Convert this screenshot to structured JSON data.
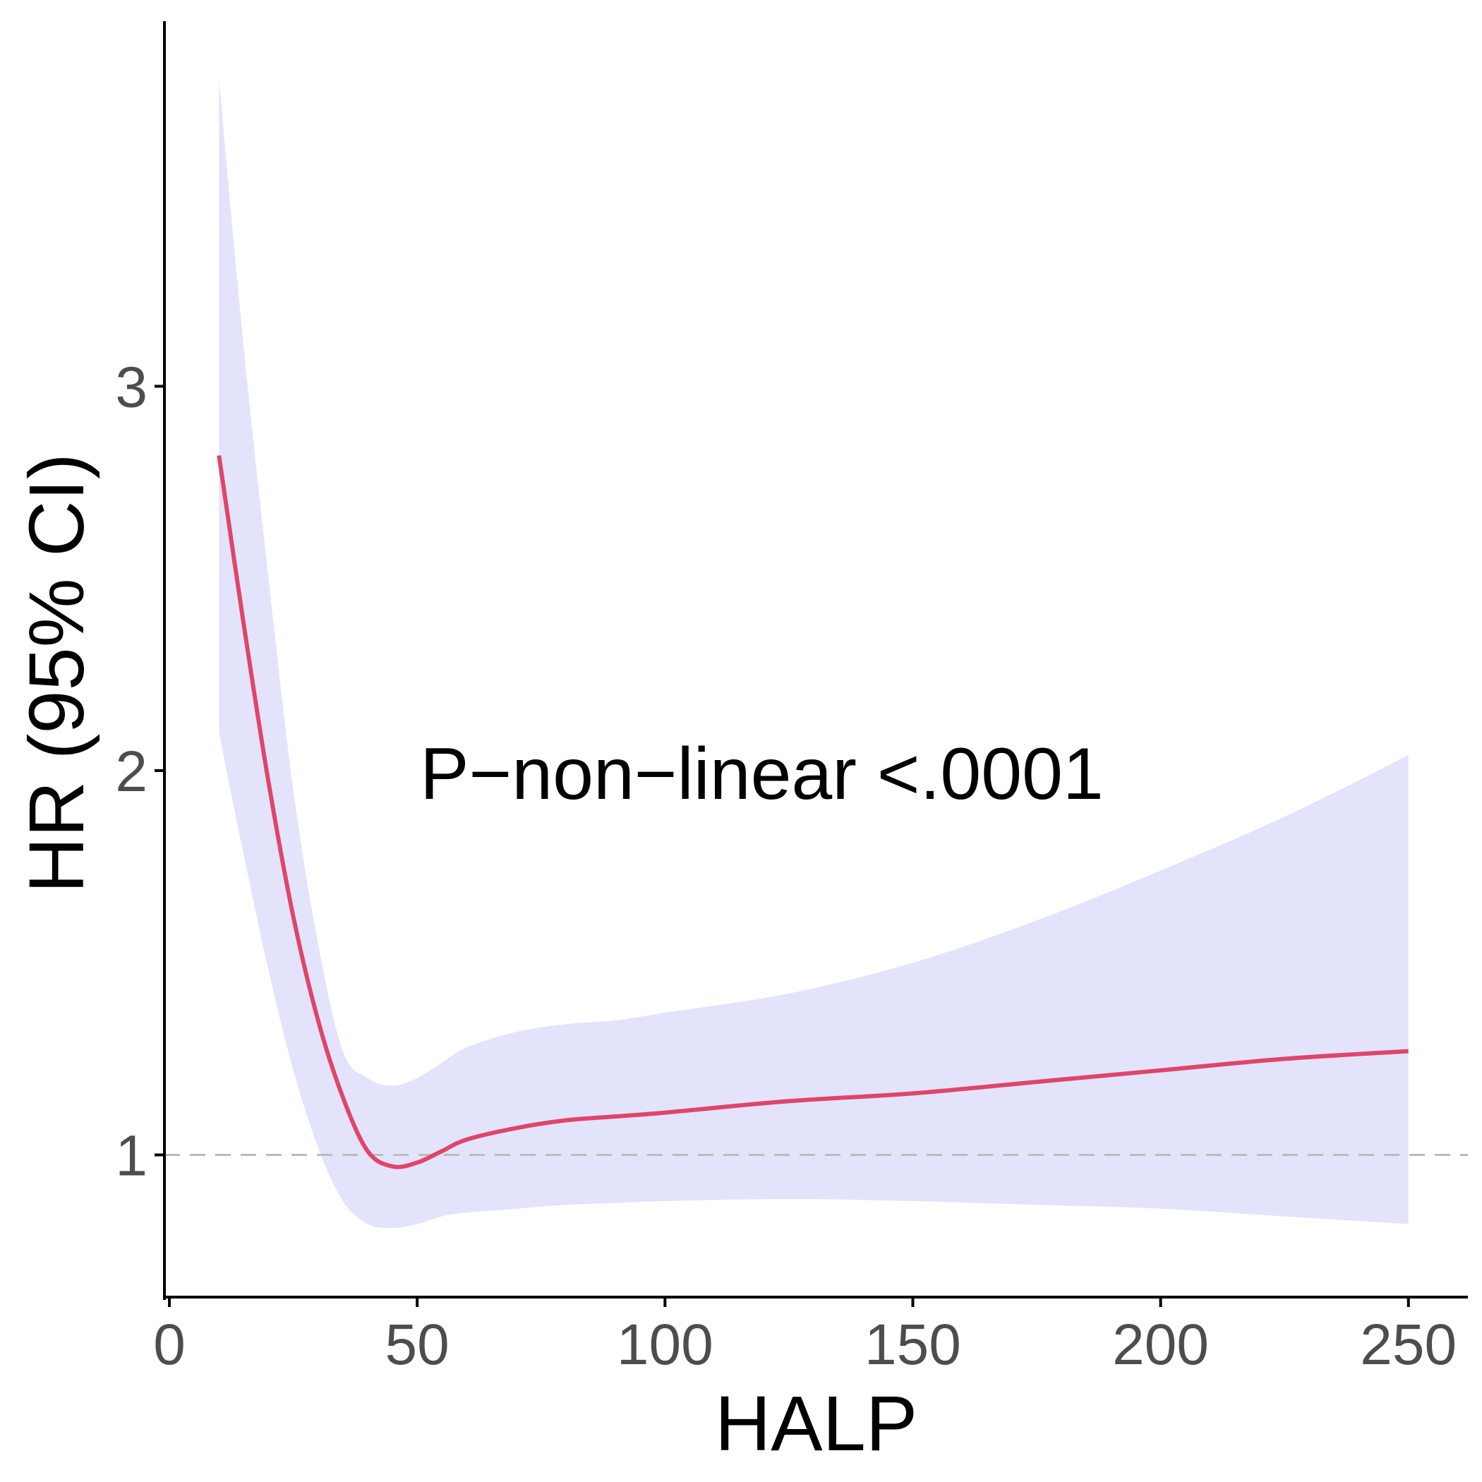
{
  "chart_data": {
    "type": "line",
    "xlabel": "HALP",
    "ylabel": "HR (95% CI)",
    "xlim": [
      -1,
      262
    ],
    "ylim": [
      0.63,
      3.95
    ],
    "x_ticks": [
      0,
      50,
      100,
      150,
      200,
      250
    ],
    "x_tick_labels": [
      "0",
      "50",
      "100",
      "150",
      "200",
      "250"
    ],
    "y_ticks": [
      1,
      2,
      3
    ],
    "y_tick_labels": [
      "1",
      "2",
      "3"
    ],
    "reference_line": {
      "y": 1,
      "style": "dashed",
      "color": "#bbbbbb"
    },
    "annotation": {
      "text": "P−non−linear <.0001",
      "x": 50,
      "y": 2.0
    },
    "grid": false,
    "legend": "none",
    "colors": {
      "line": "#e0456a",
      "band": "#e3e4fb",
      "axis": "#000000"
    },
    "series": [
      {
        "x": [
          10,
          15,
          20,
          25,
          30,
          35,
          40,
          45,
          50,
          55,
          60,
          70,
          80,
          90,
          100,
          125,
          150,
          175,
          200,
          225,
          250
        ],
        "y": [
          2.82,
          2.38,
          1.97,
          1.62,
          1.35,
          1.15,
          1.01,
          0.97,
          0.98,
          1.01,
          1.04,
          1.07,
          1.09,
          1.1,
          1.11,
          1.14,
          1.16,
          1.19,
          1.22,
          1.25,
          1.27
        ],
        "lower": [
          2.1,
          1.78,
          1.48,
          1.22,
          1.02,
          0.88,
          0.82,
          0.81,
          0.82,
          0.84,
          0.85,
          0.86,
          0.87,
          0.875,
          0.88,
          0.885,
          0.88,
          0.87,
          0.86,
          0.84,
          0.82
        ],
        "upper": [
          3.8,
          3.1,
          2.5,
          1.95,
          1.55,
          1.27,
          1.2,
          1.18,
          1.2,
          1.24,
          1.28,
          1.32,
          1.34,
          1.35,
          1.37,
          1.42,
          1.5,
          1.61,
          1.74,
          1.88,
          2.04
        ]
      }
    ]
  }
}
